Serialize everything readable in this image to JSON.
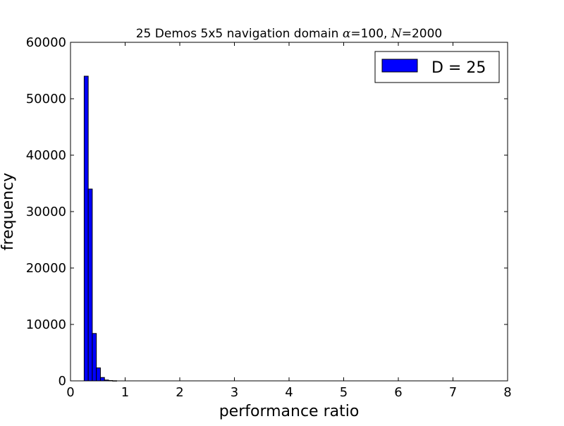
{
  "chart_data": {
    "type": "bar",
    "title_parts": {
      "prefix": "25 Demos 5x5 navigation domain ",
      "alpha_sym": "α",
      "alpha_val": "=100, ",
      "n_sym": "N",
      "n_val": "=2000"
    },
    "xlabel": "performance ratio",
    "ylabel": "frequency",
    "xlim": [
      0,
      8
    ],
    "ylim": [
      0,
      60000
    ],
    "xticks": [
      0,
      1,
      2,
      3,
      4,
      5,
      6,
      7,
      8
    ],
    "yticks": [
      0,
      10000,
      20000,
      30000,
      40000,
      50000,
      60000
    ],
    "bin_width": 0.0744,
    "x": [
      0.25,
      0.3244,
      0.3988,
      0.4732,
      0.5476,
      0.622,
      0.6964,
      0.7708
    ],
    "values": [
      54000,
      34000,
      8400,
      2300,
      600,
      150,
      60,
      20
    ],
    "series": [
      {
        "name": "D = 25",
        "values": [
          54000,
          34000,
          8400,
          2300,
          600,
          150,
          60,
          20
        ]
      }
    ],
    "legend": {
      "label": "D = 25",
      "position": "top-right"
    },
    "grid": false,
    "bar_color": "#0000ff",
    "edge_color": "#000000"
  }
}
